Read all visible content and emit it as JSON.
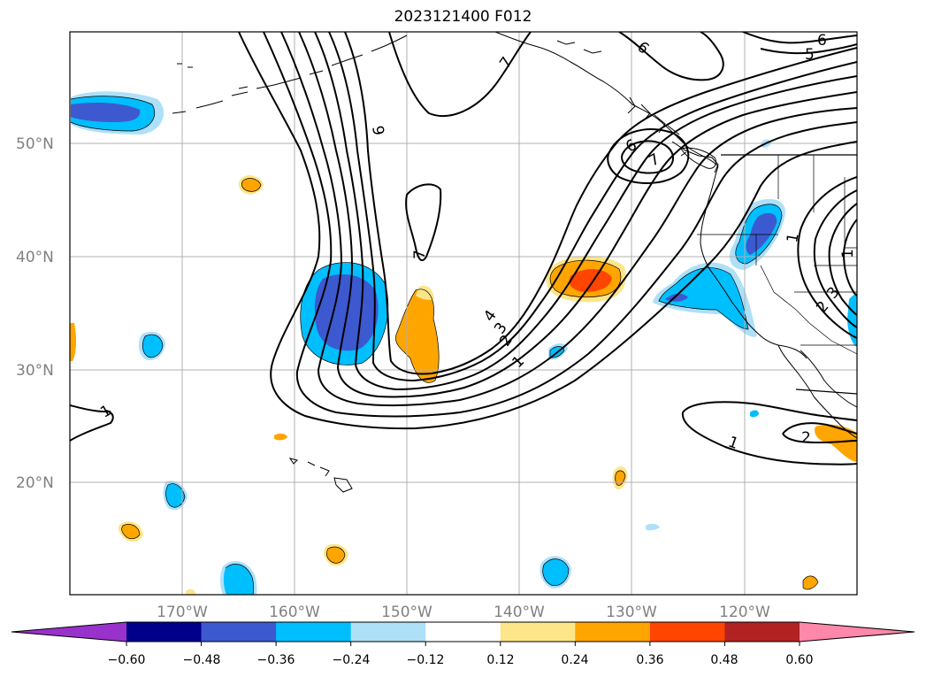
{
  "title": "2023121400 F012",
  "lat_labels": [
    "50°N",
    "40°N",
    "30°N",
    "20°N"
  ],
  "lon_labels": [
    "170°W",
    "160°W",
    "150°W",
    "140°W",
    "130°W",
    "120°W"
  ],
  "colorbar": {
    "ticks": [
      "−0.60",
      "−0.48",
      "−0.36",
      "−0.24",
      "−0.12",
      "0.12",
      "0.24",
      "0.36",
      "0.48",
      "0.60"
    ],
    "colors": [
      "#9932cc",
      "#00008b",
      "#3d59cf",
      "#00bfff",
      "#aee0f8",
      "#ffffff",
      "#fde68a",
      "#ffa500",
      "#ff4500",
      "#b22222",
      "#ff88aa"
    ]
  },
  "contour_labels": [
    "7",
    "6",
    "6",
    "5",
    "9",
    "6",
    "7",
    "7",
    "4",
    "3",
    "2",
    "1",
    "1",
    "1",
    "2",
    "1",
    "2",
    "3",
    "1"
  ],
  "colors": {
    "grid": "#b0b0b0",
    "coast": "#000000",
    "contour": "#000000"
  }
}
